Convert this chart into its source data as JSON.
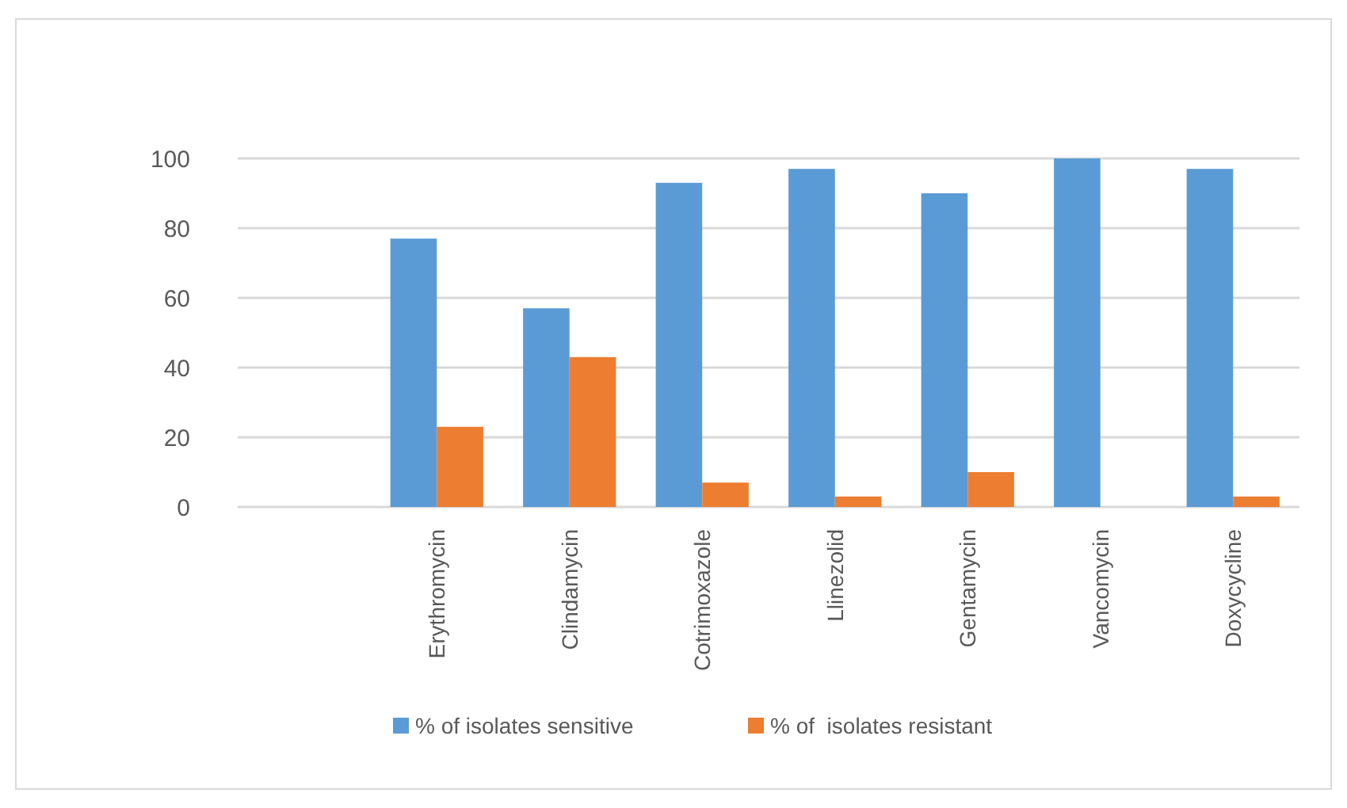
{
  "chart_data": {
    "type": "bar",
    "categories": [
      null,
      "Erythromycin",
      "Clindamycin",
      "Cotrimoxazole",
      "Llinezolid",
      "Gentamycin",
      "Vancomycin",
      "Doxycycline"
    ],
    "series": [
      {
        "name": "% of isolates sensitive",
        "color": "#5b9bd5",
        "values": [
          null,
          77,
          57,
          93,
          97,
          90,
          100,
          97
        ]
      },
      {
        "name": "% of  isolates resistant",
        "color": "#ed7d31",
        "values": [
          null,
          23,
          43,
          7,
          3,
          10,
          0,
          3
        ]
      }
    ],
    "ylim": [
      0,
      100
    ],
    "yticks": [
      0,
      20,
      40,
      60,
      80,
      100
    ],
    "grid": "y",
    "legend": "bottom"
  }
}
